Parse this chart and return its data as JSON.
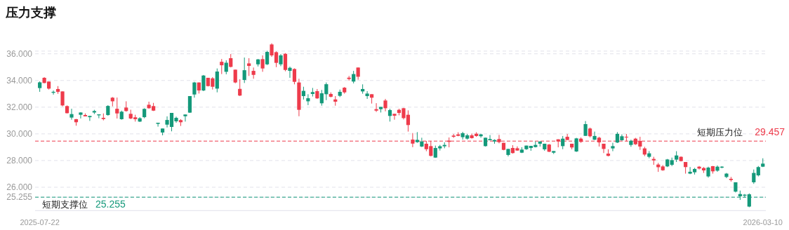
{
  "chart_data": {
    "type": "candlestick",
    "title": "压力支撑",
    "categories": [
      "2025-07-22",
      null,
      null,
      null,
      null,
      null,
      null,
      null,
      null,
      null,
      null,
      null,
      null,
      null,
      null,
      null,
      null,
      null,
      null,
      null,
      null,
      null,
      null,
      null,
      null,
      null,
      null,
      null,
      null,
      null,
      null,
      null,
      null,
      null,
      null,
      null,
      null,
      null,
      null,
      null,
      null,
      null,
      null,
      null,
      null,
      null,
      null,
      null,
      null,
      null,
      null,
      null,
      null,
      null,
      null,
      null,
      null,
      null,
      null,
      null,
      null,
      null,
      null,
      null,
      null,
      null,
      null,
      null,
      null,
      null,
      null,
      null,
      null,
      null,
      null,
      null,
      null,
      null,
      null,
      null,
      null,
      null,
      null,
      null,
      null,
      null,
      null,
      null,
      null,
      null,
      null,
      null,
      null,
      null,
      null,
      null,
      null,
      null,
      null,
      null,
      null,
      null,
      null,
      null,
      null,
      null,
      null,
      null,
      null,
      null,
      null,
      null,
      null,
      null,
      null,
      null,
      null,
      null,
      null,
      null,
      null,
      null,
      null,
      null,
      null,
      null,
      null,
      null,
      null,
      null,
      null,
      null,
      null,
      null,
      null,
      null,
      null,
      null,
      null,
      null,
      null,
      null,
      null,
      null,
      null,
      null,
      null,
      null,
      null,
      null,
      null,
      null,
      null,
      null,
      null,
      null,
      null,
      null,
      null,
      "2026-03-10"
    ],
    "ohlc": [
      [
        33.43,
        33.93,
        33.15,
        33.86
      ],
      [
        34.2,
        34.25,
        33.79,
        33.81
      ],
      [
        33.92,
        33.92,
        33.32,
        33.39
      ],
      [
        33.08,
        33.25,
        32.94,
        33.15
      ],
      [
        33.36,
        33.58,
        33.0,
        33.15
      ],
      [
        33.18,
        33.18,
        32.06,
        32.13
      ],
      [
        32.08,
        32.13,
        31.53,
        31.55
      ],
      [
        31.22,
        31.88,
        31.06,
        31.48
      ],
      [
        31.1,
        31.12,
        30.61,
        30.87
      ],
      [
        31.43,
        31.62,
        31.15,
        31.6
      ],
      [
        31.41,
        31.53,
        31.31,
        31.31
      ],
      [
        31.25,
        31.36,
        30.97,
        31.34
      ],
      [
        31.6,
        31.8,
        31.48,
        31.71
      ],
      [
        31.39,
        31.46,
        31.17,
        31.46
      ],
      [
        31.2,
        31.53,
        31.01,
        31.11
      ],
      [
        31.41,
        32.15,
        31.36,
        32.09
      ],
      [
        32.71,
        32.76,
        32.06,
        32.44
      ],
      [
        31.88,
        32.72,
        31.15,
        31.53
      ],
      [
        31.1,
        31.74,
        31.06,
        31.66
      ],
      [
        31.97,
        32.44,
        31.66,
        31.71
      ],
      [
        31.5,
        31.81,
        31.1,
        31.15
      ],
      [
        31.24,
        31.43,
        30.92,
        31.1
      ],
      [
        30.92,
        31.25,
        30.89,
        31.17
      ],
      [
        31.25,
        31.92,
        31.17,
        31.87
      ],
      [
        32.18,
        32.41,
        31.88,
        31.92
      ],
      [
        32.08,
        32.32,
        31.71,
        31.74
      ],
      [
        30.75,
        30.83,
        30.54,
        30.83
      ],
      [
        30.1,
        30.4,
        29.89,
        30.4
      ],
      [
        30.69,
        31.31,
        30.48,
        31.04
      ],
      [
        30.52,
        31.57,
        30.19,
        31.57
      ],
      [
        30.94,
        31.29,
        30.83,
        31.2
      ],
      [
        31.03,
        31.1,
        30.59,
        30.87
      ],
      [
        31.32,
        31.45,
        30.92,
        31.45
      ],
      [
        31.59,
        32.83,
        31.57,
        32.83
      ],
      [
        32.95,
        33.9,
        32.71,
        33.85
      ],
      [
        33.85,
        33.85,
        33.02,
        33.25
      ],
      [
        33.25,
        34.41,
        33.2,
        34.37
      ],
      [
        34.2,
        34.2,
        33.55,
        33.58
      ],
      [
        34.16,
        34.25,
        33.32,
        33.53
      ],
      [
        33.39,
        34.9,
        33.11,
        34.67
      ],
      [
        35.4,
        35.61,
        34.48,
        35.14
      ],
      [
        34.65,
        35.51,
        34.46,
        35.33
      ],
      [
        35.67,
        35.98,
        34.98,
        35.02
      ],
      [
        34.81,
        34.81,
        33.79,
        33.85
      ],
      [
        33.37,
        34.09,
        32.83,
        32.87
      ],
      [
        34.04,
        35.72,
        33.81,
        34.77
      ],
      [
        35.28,
        35.67,
        34.34,
        35.09
      ],
      [
        34.72,
        34.97,
        34.13,
        34.42
      ],
      [
        35.21,
        35.61,
        35.05,
        35.58
      ],
      [
        35.6,
        35.88,
        34.65,
        34.9
      ],
      [
        35.21,
        36.23,
        35.16,
        36.14
      ],
      [
        36.7,
        36.79,
        35.77,
        35.88
      ],
      [
        36.12,
        36.18,
        35.0,
        35.32
      ],
      [
        35.21,
        35.98,
        35.07,
        35.88
      ],
      [
        36.0,
        36.05,
        34.69,
        34.79
      ],
      [
        34.72,
        35.04,
        34.2,
        34.95
      ],
      [
        34.86,
        34.91,
        33.71,
        33.9
      ],
      [
        33.85,
        34.13,
        31.32,
        31.8
      ],
      [
        32.83,
        33.53,
        32.57,
        33.22
      ],
      [
        32.44,
        32.97,
        32.15,
        32.67
      ],
      [
        32.99,
        33.44,
        32.8,
        33.13
      ],
      [
        33.2,
        33.36,
        32.62,
        32.66
      ],
      [
        32.29,
        33.29,
        32.11,
        33.04
      ],
      [
        32.97,
        33.85,
        32.53,
        33.72
      ],
      [
        32.99,
        33.11,
        32.73,
        32.78
      ],
      [
        32.58,
        32.83,
        32.11,
        32.41
      ],
      [
        32.85,
        33.32,
        32.76,
        33.15
      ],
      [
        33.46,
        33.51,
        33.01,
        33.11
      ],
      [
        34.21,
        34.34,
        33.99,
        34.11
      ],
      [
        33.92,
        34.72,
        33.78,
        34.48
      ],
      [
        34.97,
        34.97,
        34.06,
        34.28
      ],
      [
        33.18,
        33.71,
        33.01,
        33.36
      ],
      [
        32.83,
        33.2,
        32.62,
        33.02
      ],
      [
        32.97,
        32.97,
        32.27,
        32.71
      ],
      [
        31.85,
        32.3,
        31.64,
        31.74
      ],
      [
        31.85,
        32.02,
        31.6,
        32.02
      ],
      [
        32.5,
        32.62,
        31.69,
        31.92
      ],
      [
        31.34,
        31.88,
        30.92,
        31.78
      ],
      [
        31.5,
        31.5,
        31.06,
        31.36
      ],
      [
        31.8,
        31.88,
        31.39,
        31.57
      ],
      [
        31.92,
        31.95,
        31.08,
        31.18
      ],
      [
        31.43,
        31.76,
        30.17,
        30.66
      ],
      [
        29.57,
        30.06,
        29.0,
        29.27
      ],
      [
        29.38,
        30.13,
        29.33,
        29.55
      ],
      [
        29.05,
        29.71,
        29.01,
        29.43
      ],
      [
        29.26,
        29.47,
        28.7,
        28.85
      ],
      [
        29.08,
        29.47,
        28.31,
        28.35
      ],
      [
        28.22,
        29.12,
        28.2,
        28.94
      ],
      [
        28.91,
        29.17,
        28.75,
        29.07
      ],
      [
        29.07,
        29.36,
        28.92,
        29.17
      ],
      [
        29.49,
        29.73,
        28.99,
        29.4
      ],
      [
        29.87,
        29.99,
        29.7,
        29.78
      ],
      [
        29.96,
        30.12,
        29.82,
        29.85
      ],
      [
        29.75,
        30.15,
        29.57,
        30.05
      ],
      [
        29.64,
        29.99,
        29.57,
        29.89
      ],
      [
        29.89,
        30.01,
        29.64,
        29.68
      ],
      [
        30.01,
        30.12,
        29.78,
        29.84
      ],
      [
        29.82,
        30.01,
        29.71,
        29.96
      ],
      [
        29.08,
        29.71,
        29.05,
        29.71
      ],
      [
        29.52,
        29.91,
        29.52,
        29.61
      ],
      [
        29.43,
        29.59,
        29.26,
        29.54
      ],
      [
        29.61,
        29.92,
        29.29,
        29.38
      ],
      [
        29.33,
        29.33,
        28.77,
        28.8
      ],
      [
        28.42,
        28.87,
        28.31,
        28.87
      ],
      [
        28.94,
        29.15,
        28.52,
        28.56
      ],
      [
        28.92,
        29.06,
        28.73,
        28.75
      ],
      [
        28.59,
        29.0,
        28.56,
        28.82
      ],
      [
        28.85,
        29.12,
        28.8,
        29.12
      ],
      [
        28.94,
        29.1,
        28.73,
        29.1
      ],
      [
        29.01,
        29.43,
        28.98,
        29.17
      ],
      [
        29.26,
        29.43,
        29.05,
        29.43
      ],
      [
        28.84,
        29.26,
        28.73,
        29.26
      ],
      [
        29.2,
        29.24,
        28.63,
        28.66
      ],
      [
        28.59,
        28.71,
        28.49,
        28.71
      ],
      [
        29.59,
        29.59,
        28.99,
        29.43
      ],
      [
        29.08,
        29.84,
        28.85,
        29.64
      ],
      [
        29.78,
        29.99,
        29.54,
        29.54
      ],
      [
        29.26,
        29.26,
        28.84,
        28.98
      ],
      [
        28.68,
        29.7,
        28.64,
        29.66
      ],
      [
        29.64,
        29.73,
        29.33,
        29.4
      ],
      [
        29.85,
        30.96,
        29.85,
        30.73
      ],
      [
        30.4,
        30.47,
        29.73,
        29.82
      ],
      [
        29.56,
        30.17,
        29.54,
        29.84
      ],
      [
        29.71,
        29.78,
        29.05,
        29.36
      ],
      [
        29.26,
        29.26,
        28.56,
        28.87
      ],
      [
        28.52,
        28.84,
        28.31,
        28.35
      ],
      [
        28.91,
        29.33,
        28.7,
        29.08
      ],
      [
        29.35,
        30.13,
        29.31,
        30.0
      ],
      [
        29.52,
        29.96,
        29.49,
        29.82
      ],
      [
        29.78,
        29.99,
        29.43,
        29.73
      ],
      [
        29.17,
        29.56,
        29.03,
        29.48
      ],
      [
        29.64,
        29.7,
        29.17,
        29.22
      ],
      [
        29.47,
        29.78,
        28.8,
        29.05
      ],
      [
        28.91,
        29.03,
        28.33,
        28.45
      ],
      [
        28.28,
        28.71,
        28.17,
        28.54
      ],
      [
        28.12,
        28.28,
        27.68,
        28.01
      ],
      [
        27.7,
        27.82,
        27.15,
        27.5
      ],
      [
        27.56,
        27.66,
        27.23,
        27.27
      ],
      [
        27.56,
        28.12,
        27.51,
        28.08
      ],
      [
        27.68,
        28.22,
        27.58,
        28.03
      ],
      [
        28.07,
        28.7,
        27.89,
        28.38
      ],
      [
        28.28,
        28.31,
        27.93,
        27.96
      ],
      [
        27.89,
        27.89,
        27.02,
        27.51
      ],
      [
        27.02,
        27.51,
        26.98,
        27.16
      ],
      [
        27.12,
        27.45,
        26.95,
        27.37
      ],
      [
        27.54,
        27.59,
        27.33,
        27.4
      ],
      [
        27.44,
        27.51,
        27.07,
        27.26
      ],
      [
        26.81,
        27.54,
        26.72,
        27.47
      ],
      [
        27.58,
        27.59,
        27.02,
        27.19
      ],
      [
        27.24,
        27.63,
        27.16,
        27.54
      ],
      [
        27.47,
        27.58,
        27.42,
        27.54
      ],
      [
        26.77,
        27.07,
        26.68,
        27.02
      ],
      [
        26.63,
        26.77,
        26.42,
        26.54
      ],
      [
        25.67,
        26.37,
        25.61,
        26.37
      ],
      [
        25.32,
        25.75,
        25.05,
        25.49
      ],
      [
        25.37,
        25.49,
        25.23,
        25.44
      ],
      [
        24.55,
        25.54,
        24.5,
        25.47
      ],
      [
        26.37,
        27.33,
        26.25,
        27.07
      ],
      [
        26.89,
        27.59,
        26.81,
        27.51
      ],
      [
        27.54,
        28.17,
        27.51,
        27.77
      ]
    ],
    "colors": [
      "#14997a",
      "#ee3b4b",
      "#ee3b4b",
      "#14997a",
      "#ee3b4b",
      "#ee3b4b",
      "#ee3b4b",
      "#14997a",
      "#ee3b4b",
      "#14997a",
      "#ee3b4b",
      "#14997a",
      "#14997a",
      "#14997a",
      "#ee3b4b",
      "#14997a",
      "#ee3b4b",
      "#ee3b4b",
      "#14997a",
      "#ee3b4b",
      "#ee3b4b",
      "#ee3b4b",
      "#14997a",
      "#14997a",
      "#ee3b4b",
      "#ee3b4b",
      "#14997a",
      "#14997a",
      "#14997a",
      "#14997a",
      "#14997a",
      "#ee3b4b",
      "#14997a",
      "#14997a",
      "#14997a",
      "#ee3b4b",
      "#14997a",
      "#ee3b4b",
      "#ee3b4b",
      "#14997a",
      "#ee3b4b",
      "#14997a",
      "#ee3b4b",
      "#ee3b4b",
      "#ee3b4b",
      "#14997a",
      "#ee3b4b",
      "#ee3b4b",
      "#14997a",
      "#ee3b4b",
      "#14997a",
      "#ee3b4b",
      "#ee3b4b",
      "#14997a",
      "#ee3b4b",
      "#14997a",
      "#ee3b4b",
      "#ee3b4b",
      "#14997a",
      "#14997a",
      "#14997a",
      "#ee3b4b",
      "#14997a",
      "#14997a",
      "#ee3b4b",
      "#ee3b4b",
      "#14997a",
      "#ee3b4b",
      "#ee3b4b",
      "#14997a",
      "#ee3b4b",
      "#14997a",
      "#14997a",
      "#ee3b4b",
      "#ee3b4b",
      "#14997a",
      "#ee3b4b",
      "#14997a",
      "#ee3b4b",
      "#ee3b4b",
      "#ee3b4b",
      "#ee3b4b",
      "#ee3b4b",
      "#14997a",
      "#14997a",
      "#ee3b4b",
      "#ee3b4b",
      "#14997a",
      "#14997a",
      "#14997a",
      "#ee3b4b",
      "#ee3b4b",
      "#ee3b4b",
      "#14997a",
      "#14997a",
      "#ee3b4b",
      "#ee3b4b",
      "#14997a",
      "#14997a",
      "#14997a",
      "#14997a",
      "#ee3b4b",
      "#ee3b4b",
      "#14997a",
      "#ee3b4b",
      "#ee3b4b",
      "#14997a",
      "#14997a",
      "#14997a",
      "#14997a",
      "#14997a",
      "#14997a",
      "#ee3b4b",
      "#14997a",
      "#ee3b4b",
      "#14997a",
      "#ee3b4b",
      "#ee3b4b",
      "#14997a",
      "#ee3b4b",
      "#14997a",
      "#ee3b4b",
      "#14997a",
      "#ee3b4b",
      "#ee3b4b",
      "#ee3b4b",
      "#14997a",
      "#14997a",
      "#14997a",
      "#ee3b4b",
      "#14997a",
      "#ee3b4b",
      "#ee3b4b",
      "#ee3b4b",
      "#14997a",
      "#ee3b4b",
      "#ee3b4b",
      "#ee3b4b",
      "#14997a",
      "#14997a",
      "#14997a",
      "#ee3b4b",
      "#ee3b4b",
      "#14997a",
      "#14997a",
      "#ee3b4b",
      "#ee3b4b",
      "#14997a",
      "#ee3b4b",
      "#14997a",
      "#14997a",
      "#14997a",
      "#ee3b4b",
      "#14997a",
      "#14997a",
      "#14997a",
      "#14997a",
      "#14997a",
      "#14997a",
      "#14997a"
    ],
    "ylim": [
      24.25,
      36.2
    ],
    "yticks": [
      {
        "value": 25.255,
        "label": "25.255"
      },
      {
        "value": 26,
        "label": "26.000"
      },
      {
        "value": 28,
        "label": "28.000"
      },
      {
        "value": 30,
        "label": "30.000"
      },
      {
        "value": 32,
        "label": "32.000"
      },
      {
        "value": 34,
        "label": "34.000"
      },
      {
        "value": 36,
        "label": "36.000"
      }
    ],
    "grid": "y",
    "annotations": [
      "29.457",
      "25.255"
    ],
    "ref_lines": [
      {
        "axis": "y",
        "value": 29.457,
        "label": "短期压力位",
        "color": "#ee3b4b",
        "line_style": "dashed"
      },
      {
        "axis": "y",
        "value": 25.255,
        "label": "短期支撑位",
        "color": "#14997a",
        "line_style": "dashed"
      }
    ]
  }
}
